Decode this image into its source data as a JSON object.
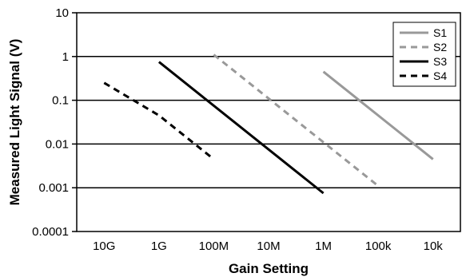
{
  "chart_data": {
    "type": "line",
    "title": "",
    "xlabel": "Gain Setting",
    "ylabel": "Measured Light Signal (V)",
    "x_categories": [
      "10G",
      "1G",
      "100M",
      "10M",
      "1M",
      "100k",
      "10k"
    ],
    "yscale": "log",
    "ylim": [
      0.0001,
      10
    ],
    "y_ticks": [
      "10",
      "1",
      "0.1",
      "0.01",
      "0.001",
      "0.0001"
    ],
    "grid": "horizontal major gridlines",
    "legend_position": "top-right, inside plot",
    "series": [
      {
        "name": "S1",
        "color": "#999999",
        "dash": "solid",
        "points": [
          {
            "x": "1M",
            "y": 0.45
          },
          {
            "x": "10k",
            "y": 0.0045
          }
        ]
      },
      {
        "name": "S2",
        "color": "#999999",
        "dash": "dashed",
        "points": [
          {
            "x": "100M",
            "y": 1.1
          },
          {
            "x": "100k",
            "y": 0.0011
          }
        ]
      },
      {
        "name": "S3",
        "color": "#000000",
        "dash": "solid",
        "points": [
          {
            "x": "1G",
            "y": 0.75
          },
          {
            "x": "1M",
            "y": 0.00075
          }
        ]
      },
      {
        "name": "S4",
        "color": "#000000",
        "dash": "dashed",
        "points": [
          {
            "x": "10G",
            "y": 0.25
          },
          {
            "x": "1G",
            "y": 0.045
          },
          {
            "x": "100M",
            "y": 0.0045
          }
        ]
      }
    ]
  }
}
